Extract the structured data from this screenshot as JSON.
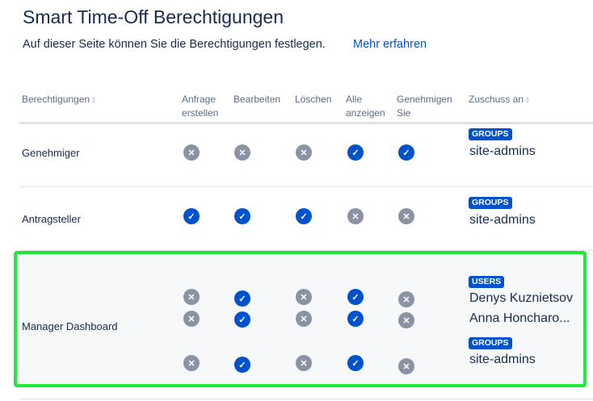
{
  "page": {
    "title": "Smart Time-Off Berechtigungen",
    "subtitle": "Auf dieser Seite können Sie die Berechtigungen festlegen.",
    "learn_more": "Mehr erfahren"
  },
  "table": {
    "headers": {
      "permissions": "Berechtigungen",
      "create_1": "Anfrage",
      "create_2": "erstellen",
      "edit": "Bearbeiten",
      "delete": "Löschen",
      "view_all_1": "Alle",
      "view_all_2": "anzeigen",
      "approve_1": "Genehmigen",
      "approve_2": "Sie",
      "grant": "Zuschuss an"
    },
    "rows": [
      {
        "name": "Genehmiger",
        "permissions": [
          [
            false,
            false,
            false,
            true,
            true
          ]
        ],
        "grants": [
          {
            "badge": "GROUPS",
            "items": [
              "site-admins"
            ]
          }
        ]
      },
      {
        "name": "Antragsteller",
        "permissions": [
          [
            true,
            true,
            true,
            false,
            false
          ]
        ],
        "grants": [
          {
            "badge": "GROUPS",
            "items": [
              "site-admins"
            ]
          }
        ]
      },
      {
        "name": "Manager Dashboard",
        "highlighted": true,
        "permissions": [
          [
            false,
            true,
            false,
            true,
            false
          ],
          [
            false,
            true,
            false,
            true,
            false
          ],
          [
            false,
            true,
            false,
            true,
            false
          ]
        ],
        "grants": [
          {
            "badge": "USERS",
            "items": [
              "Denys Kuznietsov",
              "Anna Honcharo..."
            ]
          },
          {
            "badge": "GROUPS",
            "items": [
              "site-admins"
            ]
          }
        ]
      }
    ]
  },
  "colors": {
    "accent": "#0052cc",
    "allowed": "#0052cc",
    "denied": "#8993a4",
    "highlight_border": "#22e83a"
  },
  "icons": {
    "allowed": "check-circle-icon",
    "denied": "cross-circle-icon",
    "sort": "sort-icon"
  }
}
